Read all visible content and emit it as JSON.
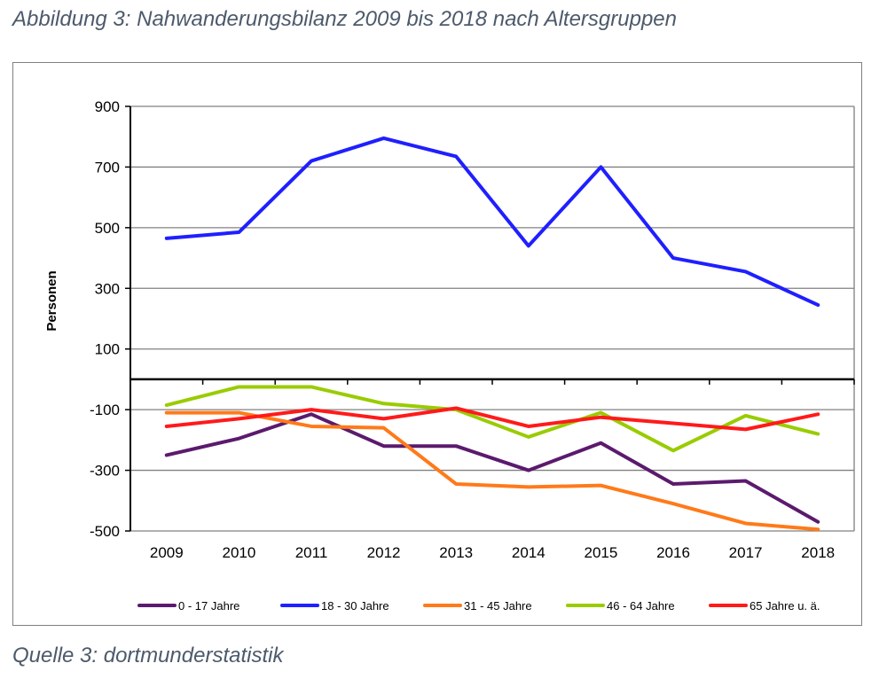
{
  "figure": {
    "title": "Abbildung 3: Nahwanderungsbilanz 2009 bis 2018 nach Altersgruppen",
    "source": "Quelle 3: dortmunderstatistik"
  },
  "chart_data": {
    "type": "line",
    "title": "",
    "xlabel": "",
    "ylabel": "Personen",
    "x": [
      "2009",
      "2010",
      "2011",
      "2012",
      "2013",
      "2014",
      "2015",
      "2016",
      "2017",
      "2018"
    ],
    "ylim": [
      -500,
      900
    ],
    "yticks": [
      -500,
      -300,
      -100,
      100,
      300,
      500,
      700,
      900
    ],
    "ytick_labels": [
      "-500",
      "-300",
      "-100",
      "100",
      "300",
      "500",
      "700",
      "900"
    ],
    "grid": true,
    "legend_position": "bottom",
    "series": [
      {
        "name": "0 - 17 Jahre",
        "color": "#5b1a6e",
        "values": [
          -250,
          -195,
          -115,
          -220,
          -220,
          -300,
          -210,
          -345,
          -335,
          -470
        ]
      },
      {
        "name": "18 - 30 Jahre",
        "color": "#1f1fff",
        "values": [
          465,
          485,
          720,
          795,
          735,
          440,
          700,
          400,
          355,
          245
        ]
      },
      {
        "name": "31 - 45 Jahre",
        "color": "#ff7a1a",
        "values": [
          -110,
          -110,
          -155,
          -160,
          -345,
          -355,
          -350,
          -410,
          -475,
          -495
        ]
      },
      {
        "name": "46 - 64 Jahre",
        "color": "#99cc00",
        "values": [
          -85,
          -25,
          -25,
          -80,
          -100,
          -190,
          -110,
          -235,
          -120,
          -180
        ]
      },
      {
        "name": "65 Jahre u. ä.",
        "color": "#ff1a1a",
        "values": [
          -155,
          -130,
          -100,
          -130,
          -95,
          -155,
          -125,
          -145,
          -165,
          -115
        ]
      }
    ]
  }
}
